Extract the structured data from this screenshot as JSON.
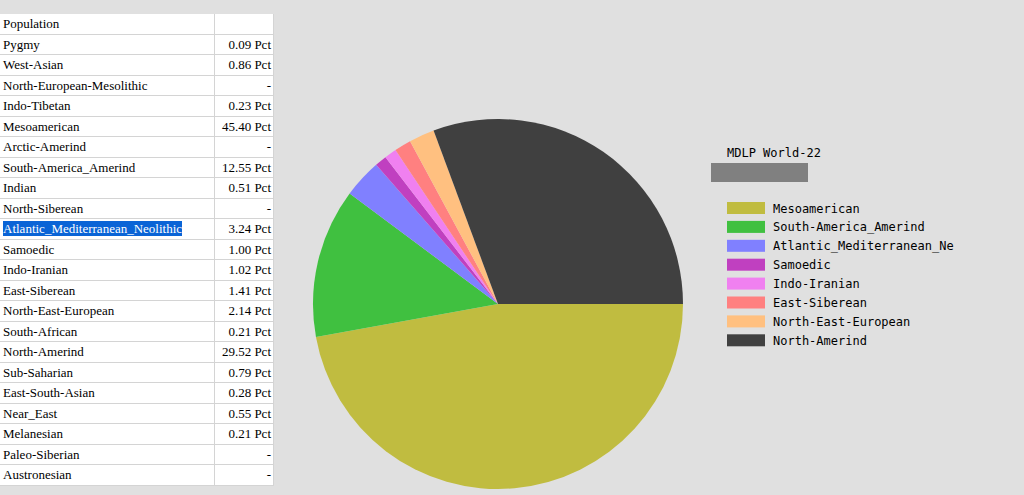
{
  "table": {
    "header": [
      "Population"
    ],
    "rows": [
      [
        "Pygmy",
        "0.09 Pct"
      ],
      [
        "West-Asian",
        "0.86 Pct"
      ],
      [
        "North-European-Mesolithic",
        "-"
      ],
      [
        "Indo-Tibetan",
        "0.23 Pct"
      ],
      [
        "Mesoamerican",
        "45.40 Pct"
      ],
      [
        "Arctic-Amerind",
        "-"
      ],
      [
        "South-America_Amerind",
        "12.55 Pct"
      ],
      [
        "Indian",
        "0.51 Pct"
      ],
      [
        "North-Siberean",
        "-"
      ],
      [
        "Atlantic_Mediterranean_Neolithic",
        "3.24 Pct"
      ],
      [
        "Samoedic",
        "1.00 Pct"
      ],
      [
        "Indo-Iranian",
        "1.02 Pct"
      ],
      [
        "East-Siberean",
        "1.41 Pct"
      ],
      [
        "North-East-European",
        "2.14 Pct"
      ],
      [
        "South-African",
        "0.21 Pct"
      ],
      [
        "North-Amerind",
        "29.52 Pct"
      ],
      [
        "Sub-Saharian",
        "0.79 Pct"
      ],
      [
        "East-South-Asian",
        "0.28 Pct"
      ],
      [
        "Near_East",
        "0.55 Pct"
      ],
      [
        "Melanesian",
        "0.21 Pct"
      ],
      [
        "Paleo-Siberian",
        "-"
      ],
      [
        "Austronesian",
        "-"
      ]
    ]
  },
  "chart_data": {
    "type": "pie",
    "title": "MDLP World-22",
    "categories": [
      "Mesoamerican",
      "South-America_Amerind",
      "Atlantic_Mediterranean_Ne",
      "Samoedic",
      "Indo-Iranian",
      "East-Siberean",
      "North-East-European",
      "North-Amerind"
    ],
    "values": [
      45.4,
      12.55,
      3.24,
      1.0,
      1.02,
      1.41,
      2.14,
      29.52
    ],
    "colors": [
      "#c0bc40",
      "#40c040",
      "#8080ff",
      "#c040c0",
      "#f080f0",
      "#ff8080",
      "#ffc080",
      "#404040"
    ],
    "legend": "right"
  }
}
